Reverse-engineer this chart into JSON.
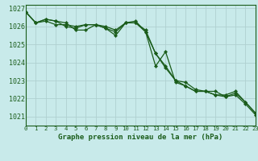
{
  "title": "Graphe pression niveau de la mer (hPa)",
  "bg_color": "#c8eaea",
  "grid_color": "#b0d0d0",
  "line_color": "#1a5c1a",
  "x_min": 0,
  "x_max": 23,
  "y_min": 1020.5,
  "y_max": 1027.2,
  "yticks": [
    1021,
    1022,
    1023,
    1024,
    1025,
    1026,
    1027
  ],
  "series1": [
    1026.8,
    1026.2,
    1026.3,
    1026.1,
    1026.1,
    1026.0,
    1026.1,
    1026.1,
    1025.9,
    1025.7,
    1026.2,
    1026.2,
    1025.7,
    1023.8,
    1024.6,
    1022.9,
    1022.7,
    1022.4,
    1022.4,
    1022.4,
    1022.1,
    1022.3,
    1021.8,
    1021.2
  ],
  "series2": [
    1026.8,
    1026.2,
    1026.4,
    1026.3,
    1026.2,
    1025.8,
    1025.8,
    1026.1,
    1026.0,
    1025.8,
    1026.2,
    1026.3,
    1025.7,
    1024.5,
    1023.7,
    1023.0,
    1022.9,
    1022.5,
    1022.4,
    1022.2,
    1022.2,
    1022.4,
    1021.8,
    1021.2
  ],
  "series3": [
    1026.8,
    1026.2,
    1026.4,
    1026.3,
    1026.0,
    1025.9,
    1026.1,
    1026.1,
    1025.9,
    1025.5,
    1026.2,
    1026.2,
    1025.8,
    1024.5,
    1023.8,
    1023.0,
    1022.7,
    1022.4,
    1022.4,
    1022.2,
    1022.1,
    1022.2,
    1021.7,
    1021.1
  ],
  "xlabel_fontsize": 6.5,
  "xtick_fontsize": 5.2,
  "ytick_fontsize": 6.0,
  "linewidth": 0.9,
  "markersize": 2.2
}
